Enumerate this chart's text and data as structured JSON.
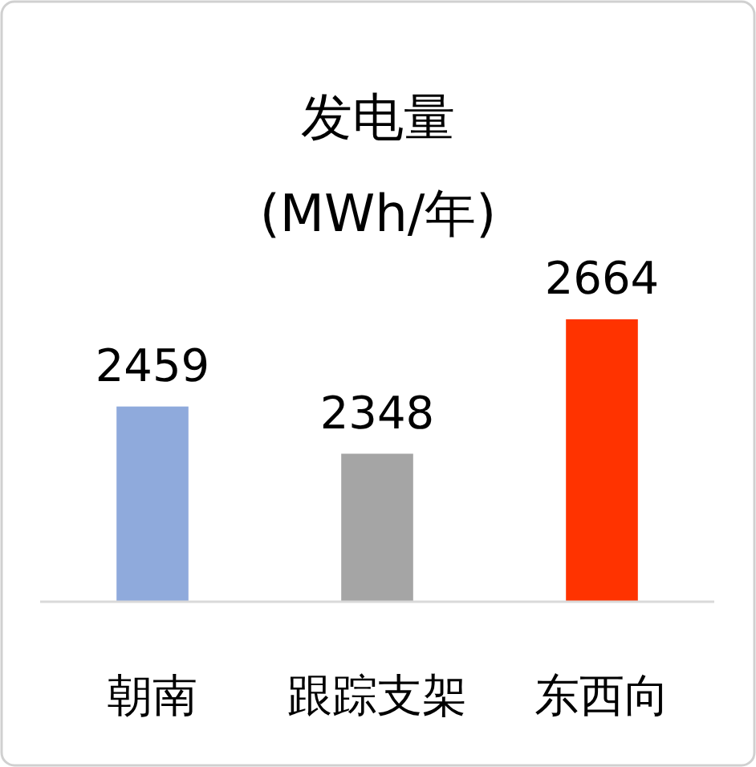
{
  "chart_data": {
    "type": "bar",
    "title": "发电量",
    "subtitle": "(MWh/年)",
    "categories": [
      "朝南",
      "跟踪支架",
      "东西向"
    ],
    "values": [
      2459,
      2348,
      2664
    ],
    "colors": [
      "#8faadc",
      "#a5a5a5",
      "#ff3300"
    ],
    "ylim": [
      2000,
      2664
    ],
    "data_labels": true,
    "tick_labels": "x"
  }
}
